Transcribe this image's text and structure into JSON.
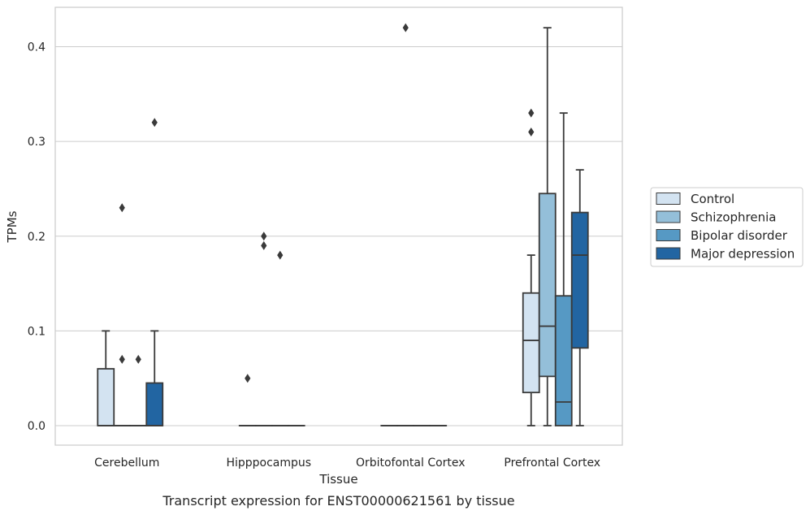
{
  "chart_data": {
    "type": "box",
    "xlabel": "Tissue",
    "ylabel": "TPMs",
    "caption": "Transcript expression for ENST00000621561 by tissue",
    "categories": [
      "Cerebellum",
      "Hipppocampus",
      "Orbitofontal Cortex",
      "Prefrontal Cortex"
    ],
    "ylim": [
      -0.02,
      0.44
    ],
    "yticks": [
      0.0,
      0.1,
      0.2,
      0.3,
      0.4
    ],
    "ytick_labels": [
      "0.0",
      "0.1",
      "0.2",
      "0.3",
      "0.4"
    ],
    "grid": "horizontal",
    "legend_position": "outside-right",
    "series": [
      {
        "name": "Control",
        "color": "#d3e3f1",
        "boxes": [
          {
            "category": "Cerebellum",
            "whisker_low": 0.0,
            "q1": 0.0,
            "median": 0.0,
            "q3": 0.06,
            "whisker_high": 0.1,
            "outliers": []
          },
          {
            "category": "Hipppocampus",
            "whisker_low": 0.0,
            "q1": 0.0,
            "median": 0.0,
            "q3": 0.0,
            "whisker_high": 0.0,
            "outliers": [
              0.05
            ]
          },
          {
            "category": "Orbitofontal Cortex",
            "whisker_low": 0.0,
            "q1": 0.0,
            "median": 0.0,
            "q3": 0.0,
            "whisker_high": 0.0,
            "outliers": []
          },
          {
            "category": "Prefrontal Cortex",
            "whisker_low": 0.0,
            "q1": 0.035,
            "median": 0.09,
            "q3": 0.14,
            "whisker_high": 0.18,
            "outliers": [
              0.31,
              0.33
            ]
          }
        ]
      },
      {
        "name": "Schizophrenia",
        "color": "#94bfd9",
        "boxes": [
          {
            "category": "Cerebellum",
            "whisker_low": 0.0,
            "q1": 0.0,
            "median": 0.0,
            "q3": 0.0,
            "whisker_high": 0.0,
            "outliers": [
              0.07,
              0.23
            ]
          },
          {
            "category": "Hipppocampus",
            "whisker_low": 0.0,
            "q1": 0.0,
            "median": 0.0,
            "q3": 0.0,
            "whisker_high": 0.0,
            "outliers": [
              0.19,
              0.2
            ]
          },
          {
            "category": "Orbitofontal Cortex",
            "whisker_low": 0.0,
            "q1": 0.0,
            "median": 0.0,
            "q3": 0.0,
            "whisker_high": 0.0,
            "outliers": [
              0.42
            ]
          },
          {
            "category": "Prefrontal Cortex",
            "whisker_low": 0.0,
            "q1": 0.052,
            "median": 0.105,
            "q3": 0.245,
            "whisker_high": 0.42,
            "outliers": []
          }
        ]
      },
      {
        "name": "Bipolar disorder",
        "color": "#5699c4",
        "boxes": [
          {
            "category": "Cerebellum",
            "whisker_low": 0.0,
            "q1": 0.0,
            "median": 0.0,
            "q3": 0.0,
            "whisker_high": 0.0,
            "outliers": [
              0.07
            ]
          },
          {
            "category": "Hipppocampus",
            "whisker_low": 0.0,
            "q1": 0.0,
            "median": 0.0,
            "q3": 0.0,
            "whisker_high": 0.0,
            "outliers": [
              0.18
            ]
          },
          {
            "category": "Orbitofontal Cortex",
            "whisker_low": 0.0,
            "q1": 0.0,
            "median": 0.0,
            "q3": 0.0,
            "whisker_high": 0.0,
            "outliers": []
          },
          {
            "category": "Prefrontal Cortex",
            "whisker_low": 0.0,
            "q1": 0.0,
            "median": 0.025,
            "q3": 0.137,
            "whisker_high": 0.33,
            "outliers": []
          }
        ]
      },
      {
        "name": "Major depression",
        "color": "#2265a2",
        "boxes": [
          {
            "category": "Cerebellum",
            "whisker_low": 0.0,
            "q1": 0.0,
            "median": 0.0,
            "q3": 0.045,
            "whisker_high": 0.1,
            "outliers": [
              0.32
            ]
          },
          {
            "category": "Hipppocampus",
            "whisker_low": 0.0,
            "q1": 0.0,
            "median": 0.0,
            "q3": 0.0,
            "whisker_high": 0.0,
            "outliers": []
          },
          {
            "category": "Orbitofontal Cortex",
            "whisker_low": 0.0,
            "q1": 0.0,
            "median": 0.0,
            "q3": 0.0,
            "whisker_high": 0.0,
            "outliers": []
          },
          {
            "category": "Prefrontal Cortex",
            "whisker_low": 0.0,
            "q1": 0.082,
            "median": 0.18,
            "q3": 0.225,
            "whisker_high": 0.27,
            "outliers": []
          }
        ]
      }
    ]
  }
}
